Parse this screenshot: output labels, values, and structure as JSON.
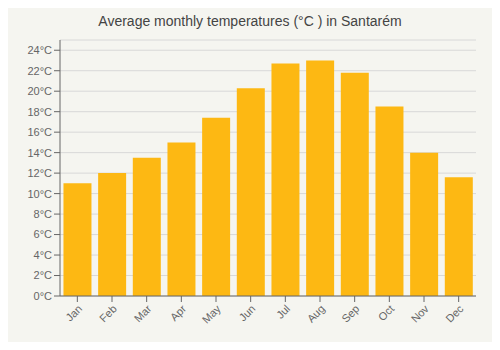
{
  "chart_data": {
    "type": "bar",
    "title": "Average monthly temperatures (°C ) in Santarém",
    "categories": [
      "Jan",
      "Feb",
      "Mar",
      "Apr",
      "May",
      "Jun",
      "Jul",
      "Aug",
      "Sep",
      "Oct",
      "Nov",
      "Dec"
    ],
    "values": [
      11.0,
      12.0,
      13.5,
      15.0,
      17.4,
      20.3,
      22.7,
      23.0,
      21.8,
      18.5,
      14.0,
      11.6
    ],
    "color": "#FDB813",
    "ylim": [
      0,
      25
    ],
    "yticks": [
      {
        "value": 0,
        "label": "0°C"
      },
      {
        "value": 2,
        "label": "2°C"
      },
      {
        "value": 4,
        "label": "4°C"
      },
      {
        "value": 6,
        "label": "6°C"
      },
      {
        "value": 8,
        "label": "8°C"
      },
      {
        "value": 10,
        "label": "10°C"
      },
      {
        "value": 12,
        "label": "12°C"
      },
      {
        "value": 14,
        "label": "14°C"
      },
      {
        "value": 16,
        "label": "16°C"
      },
      {
        "value": 18,
        "label": "18°C"
      },
      {
        "value": 20,
        "label": "20°C"
      },
      {
        "value": 22,
        "label": "22°C"
      },
      {
        "value": 24,
        "label": "24°C"
      }
    ],
    "grid": true
  }
}
